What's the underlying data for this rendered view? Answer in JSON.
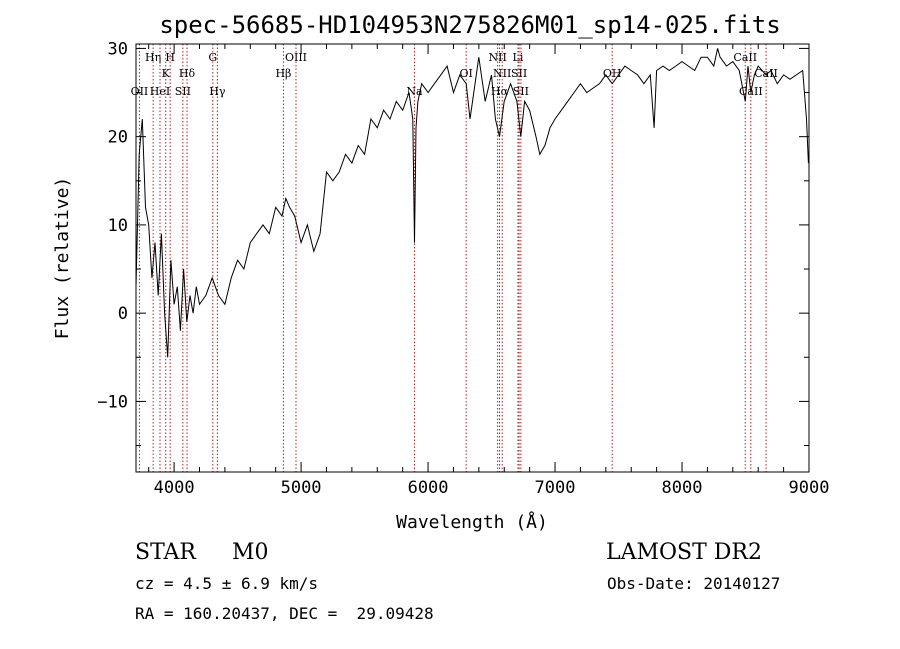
{
  "chart_data": {
    "type": "line",
    "title": "spec-56685-HD104953N275826M01_sp14-025.fits",
    "xlabel": "Wavelength (Å)",
    "ylabel": "Flux (relative)",
    "xlim": [
      3700,
      9000
    ],
    "ylim": [
      -18,
      30.5
    ],
    "x_ticks": [
      "4000",
      "5000",
      "6000",
      "7000",
      "8000",
      "9000"
    ],
    "y_ticks": [
      "-10",
      "0",
      "10",
      "20",
      "30"
    ],
    "spectral_lines": [
      {
        "label": "OII",
        "wavelength": 3727,
        "row": 3
      },
      {
        "label": "Hη",
        "wavelength": 3835,
        "row": 0
      },
      {
        "label": "K",
        "wavelength": 3934,
        "row": 1
      },
      {
        "label": "HeI",
        "wavelength": 3889,
        "row": 3
      },
      {
        "label": "H",
        "wavelength": 3969,
        "row": 0
      },
      {
        "label": "SII",
        "wavelength": 4069,
        "row": 3
      },
      {
        "label": "Hδ",
        "wavelength": 4102,
        "row": 1
      },
      {
        "label": "G",
        "wavelength": 4305,
        "row": 0
      },
      {
        "label": "Hγ",
        "wavelength": 4341,
        "row": 3
      },
      {
        "label": "Hβ",
        "wavelength": 4861,
        "row": 2
      },
      {
        "label": "OIII",
        "wavelength": 4960,
        "row": 0
      },
      {
        "label": "Na",
        "wavelength": 5893,
        "row": 3
      },
      {
        "label": "OI",
        "wavelength": 6300,
        "row": 1
      },
      {
        "label": "NII",
        "wavelength": 6548,
        "row": 0
      },
      {
        "label": "Hα",
        "wavelength": 6563,
        "row": 3
      },
      {
        "label": "NII",
        "wavelength": 6584,
        "row": 1
      },
      {
        "label": "Li",
        "wavelength": 6708,
        "row": 0
      },
      {
        "label": "SII",
        "wavelength": 6717,
        "row": 1
      },
      {
        "label": "SII",
        "wavelength": 6731,
        "row": 3
      },
      {
        "label": "OH",
        "wavelength": 7450,
        "row": 1
      },
      {
        "label": "CaII",
        "wavelength": 8498,
        "row": 0
      },
      {
        "label": "CaII",
        "wavelength": 8542,
        "row": 3
      },
      {
        "label": "CaII",
        "wavelength": 8662,
        "row": 1
      }
    ],
    "series": [
      {
        "x": [
          3700,
          3725,
          3750,
          3775,
          3800,
          3825,
          3850,
          3875,
          3900,
          3925,
          3950,
          3975,
          4000,
          4025,
          4050,
          4075,
          4100,
          4125,
          4150,
          4175,
          4200,
          4250,
          4300,
          4350,
          4400,
          4450,
          4500,
          4550,
          4600,
          4650,
          4700,
          4750,
          4800,
          4850,
          4880,
          4910,
          4950,
          5000,
          5050,
          5100,
          5150,
          5200,
          5250,
          5300,
          5350,
          5400,
          5450,
          5500,
          5550,
          5600,
          5650,
          5700,
          5750,
          5800,
          5850,
          5880,
          5893,
          5905,
          5920,
          5950,
          6000,
          6050,
          6100,
          6150,
          6200,
          6250,
          6300,
          6330,
          6360,
          6400,
          6450,
          6500,
          6530,
          6563,
          6600,
          6650,
          6700,
          6730,
          6760,
          6800,
          6850,
          6880,
          6920,
          6960,
          7000,
          7050,
          7100,
          7150,
          7200,
          7250,
          7300,
          7350,
          7400,
          7450,
          7500,
          7550,
          7600,
          7650,
          7700,
          7750,
          7780,
          7800,
          7850,
          7900,
          7950,
          8000,
          8050,
          8100,
          8150,
          8200,
          8250,
          8280,
          8300,
          8350,
          8400,
          8450,
          8498,
          8520,
          8542,
          8570,
          8600,
          8662,
          8700,
          8750,
          8800,
          8850,
          8900,
          8950,
          8980,
          8995
        ],
        "y": [
          3,
          18,
          22,
          12,
          10,
          4,
          8,
          2,
          9,
          0,
          -5,
          6,
          1,
          3,
          -2,
          5,
          -1,
          2,
          0,
          3,
          1,
          2,
          4,
          2,
          1,
          4,
          6,
          5,
          8,
          9,
          10,
          9,
          12,
          11,
          13,
          12,
          11,
          8,
          10,
          7,
          9,
          16,
          15,
          16,
          18,
          17,
          19,
          18,
          22,
          21,
          23,
          22,
          24,
          23,
          25,
          22,
          8,
          21,
          24,
          26,
          25,
          26,
          27,
          28,
          25,
          27,
          26,
          22,
          25,
          29,
          24,
          27,
          22,
          20,
          24,
          26,
          24,
          20,
          24,
          23,
          20,
          18,
          19,
          21,
          22,
          23,
          24,
          25,
          26,
          25,
          25.5,
          26,
          27,
          26,
          27,
          28,
          27.5,
          27,
          26,
          27,
          21,
          27.5,
          28,
          27.5,
          28,
          28.5,
          28,
          27.5,
          29,
          29,
          28,
          30,
          29,
          28,
          28.5,
          27.5,
          24,
          28,
          25,
          27,
          28,
          27,
          27.5,
          26,
          27,
          26.5,
          27,
          27.5,
          22,
          17
        ]
      }
    ]
  },
  "info": {
    "class_label": "STAR",
    "subclass_label": "M0",
    "survey": "LAMOST DR2",
    "cz": "cz = 4.5 ± 6.9 km/s",
    "obs_date": "Obs-Date: 20140127",
    "radec": "RA = 160.20437, DEC =  29.09428"
  }
}
